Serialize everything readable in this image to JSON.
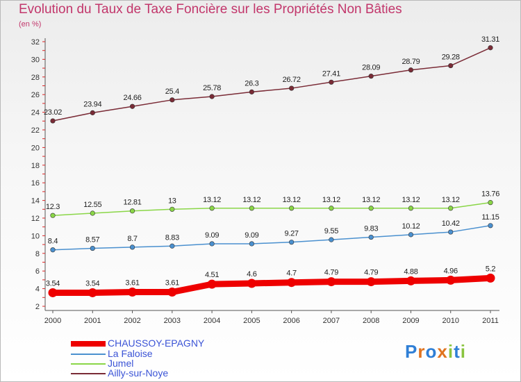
{
  "title": "Evolution du Taux de Taxe Foncière sur les Propriétés Non Bâties",
  "unit_label": "(en %)",
  "logo_text": "Proxiti",
  "colors": {
    "title": "#c2366b",
    "legend_text": "#3a53d6",
    "CHAUSSOY-EPAGNY": "#ee0000",
    "La Faloise": "#4a90cf",
    "Jumel": "#8ad647",
    "Ailly-sur-Noye": "#7a2b36"
  },
  "chart_data": {
    "type": "line",
    "title": "Evolution du Taux de Taxe Foncière sur les Propriétés Non Bâties",
    "ylabel": "(en %)",
    "xlabel": "",
    "ylim": [
      2,
      32
    ],
    "yticks": [
      2,
      4,
      6,
      8,
      10,
      12,
      14,
      16,
      18,
      20,
      22,
      24,
      26,
      28,
      30,
      32
    ],
    "grid": false,
    "legend_position": "bottom-left",
    "categories": [
      "2000",
      "2001",
      "2002",
      "2003",
      "2004",
      "2005",
      "2006",
      "2007",
      "2008",
      "2009",
      "2010",
      "2011"
    ],
    "series": [
      {
        "name": "CHAUSSOY-EPAGNY",
        "values": [
          3.54,
          3.54,
          3.61,
          3.61,
          4.51,
          4.6,
          4.7,
          4.79,
          4.79,
          4.88,
          4.96,
          5.2
        ],
        "labels": [
          "3.54",
          "3.54",
          "3.61",
          "3.61",
          "4.51",
          "4.6",
          "4.7",
          "4.79",
          "4.79",
          "4.88",
          "4.96",
          "5.2"
        ]
      },
      {
        "name": "La Faloise",
        "values": [
          8.4,
          8.57,
          8.7,
          8.83,
          9.09,
          9.09,
          9.27,
          9.55,
          9.83,
          10.12,
          10.42,
          11.15
        ],
        "labels": [
          "8.4",
          "8.57",
          "8.7",
          "8.83",
          "9.09",
          "9.09",
          "9.27",
          "9.55",
          "9.83",
          "10.12",
          "10.42",
          "11.15"
        ]
      },
      {
        "name": "Jumel",
        "values": [
          12.3,
          12.55,
          12.81,
          13,
          13.12,
          13.12,
          13.12,
          13.12,
          13.12,
          13.12,
          13.12,
          13.76
        ],
        "labels": [
          "12.3",
          "12.55",
          "12.81",
          "13",
          "13.12",
          "13.12",
          "13.12",
          "13.12",
          "13.12",
          "13.12",
          "13.12",
          "13.76"
        ]
      },
      {
        "name": "Ailly-sur-Noye",
        "values": [
          23.02,
          23.94,
          24.66,
          25.4,
          25.78,
          26.3,
          26.72,
          27.41,
          28.09,
          28.79,
          29.28,
          31.31
        ],
        "labels": [
          "23.02",
          "23.94",
          "24.66",
          "25.4",
          "25.78",
          "26.3",
          "26.72",
          "27.41",
          "28.09",
          "28.79",
          "29.28",
          "31.31"
        ]
      }
    ]
  }
}
